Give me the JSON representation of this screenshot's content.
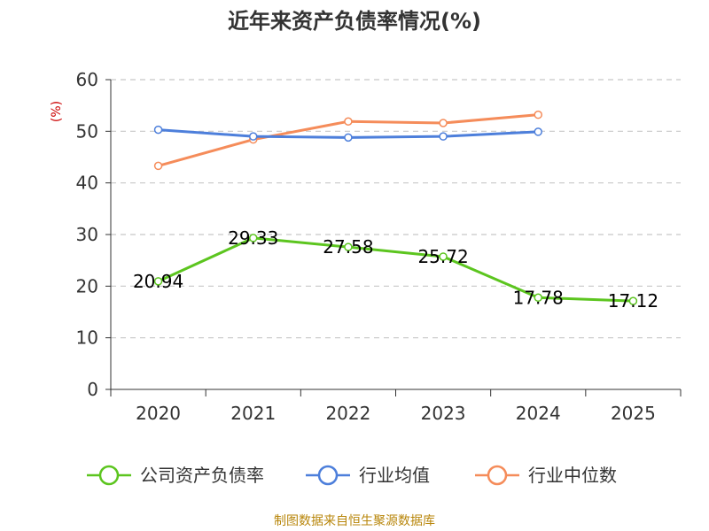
{
  "title": "近年来资产负债率情况(%)",
  "source": "制图数据来自恒生聚源数据库",
  "chart_data": {
    "type": "line",
    "title": "近年来资产负债率情况(%)",
    "ylabel": "(%)",
    "xlabel": "",
    "categories": [
      "2020",
      "2021",
      "2022",
      "2023",
      "2024",
      "2025"
    ],
    "ylim": [
      0,
      60
    ],
    "yticks": [
      0,
      10,
      20,
      30,
      40,
      50,
      60
    ],
    "grid": true,
    "legend_position": "bottom",
    "series": [
      {
        "name": "公司资产负债率",
        "color": "#5cc51f",
        "values": [
          20.94,
          29.33,
          27.58,
          25.72,
          17.78,
          17.12
        ],
        "labels": [
          "20.94",
          "29.33",
          "27.58",
          "25.72",
          "17.78",
          "17.12"
        ]
      },
      {
        "name": "行业均值",
        "color": "#4d7fdb",
        "values": [
          50.3,
          49.0,
          48.8,
          49.0,
          49.9,
          null
        ]
      },
      {
        "name": "行业中位数",
        "color": "#f58c5a",
        "values": [
          43.3,
          48.4,
          51.9,
          51.6,
          53.2,
          null
        ]
      }
    ]
  }
}
